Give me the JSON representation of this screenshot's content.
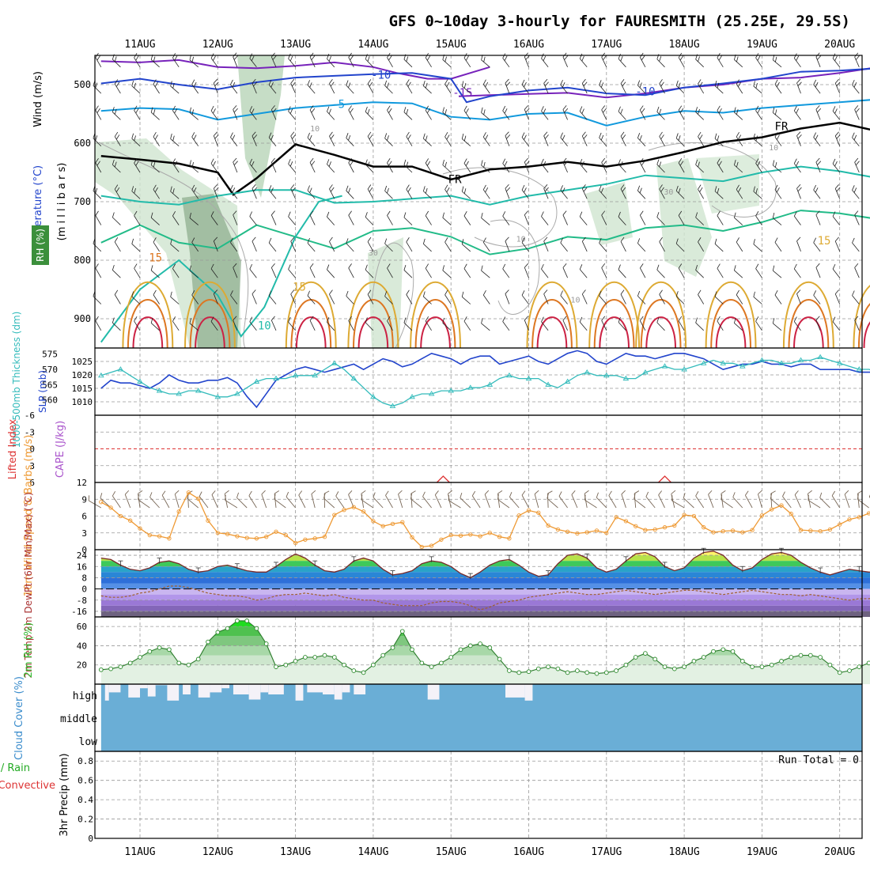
{
  "chart_data": {
    "type": "line",
    "title": "GFS 0~10day 3-hourly for FAURESMITH (25.25E, 29.5S)",
    "x_dates": [
      "11AUG",
      "12AUG",
      "13AUG",
      "14AUG",
      "15AUG",
      "16AUG",
      "17AUG",
      "18AUG",
      "19AUG",
      "20AUG"
    ],
    "colors": {
      "temp_m15": "#7722bb",
      "temp_m10": "#2244cc",
      "temp_m5": "#1199dd",
      "temp_0": "#22bbaa",
      "temp_5": "#22bb88",
      "temp_15": "#ddaa33",
      "temp_20": "#dd7722",
      "temp_25": "#cc2244",
      "slp": "#2244cc",
      "thickness": "#33bbbb",
      "wind_speed": "#ee9933",
      "barb": "#776655",
      "rh_fill": "#33bb33",
      "cloud": "#6aaed6",
      "lifted_index": "#dd3333"
    },
    "panels": {
      "upper_air": {
        "ylabel_wind": "Wind (m/s)",
        "ylabel_temp": "Temperature (°C)",
        "ylabel_rh": "RH (%)",
        "ylabel_p": "(m i l l i b a r s)",
        "yticks": [
          500,
          600,
          700,
          800,
          900
        ],
        "ylim": [
          450,
          950
        ],
        "contour_labels": [
          {
            "text": "-15",
            "x": 4.15,
            "p": 520,
            "color": "#7722bb"
          },
          {
            "text": "-10",
            "x": 3.1,
            "p": 490,
            "color": "#2244cc"
          },
          {
            "text": "-10",
            "x": 6.5,
            "p": 518,
            "color": "#2244cc"
          },
          {
            "text": "-5",
            "x": 2.55,
            "p": 540,
            "color": "#1199dd"
          },
          {
            "text": "FR",
            "x": 8.25,
            "p": 578,
            "color": "#000000"
          },
          {
            "text": "FR",
            "x": 4.05,
            "p": 668,
            "color": "#000000"
          },
          {
            "text": "15",
            "x": 0.2,
            "p": 802,
            "color": "#dd7722"
          },
          {
            "text": "15",
            "x": 2.05,
            "p": 852,
            "color": "#ddaa33"
          },
          {
            "text": "15",
            "x": 8.8,
            "p": 773,
            "color": "#ddaa33"
          },
          {
            "text": "10",
            "x": 1.6,
            "p": 918,
            "color": "#22bbaa"
          },
          {
            "text": "10",
            "x": 2.25,
            "p": 580,
            "color": "#999999"
          },
          {
            "text": "10",
            "x": 8.15,
            "p": 612,
            "color": "#999999"
          },
          {
            "text": "10",
            "x": 4.9,
            "p": 768,
            "color": "#999999"
          },
          {
            "text": "10",
            "x": 5.6,
            "p": 872,
            "color": "#999999"
          },
          {
            "text": "30",
            "x": 3.0,
            "p": 792,
            "color": "#999999"
          },
          {
            "text": "30",
            "x": 6.8,
            "p": 688,
            "color": "#999999"
          }
        ]
      },
      "pressure": {
        "ylabel_thick": "1000-500mb Thickness (dm)",
        "ylabel_slp": "SLP (mb)",
        "yticks_thick": [
          560,
          565,
          570,
          575
        ],
        "yticks_slp": [
          1010,
          1015,
          1020,
          1025
        ],
        "slp": [
          1015,
          1018,
          1017,
          1017,
          1016,
          1015,
          1017,
          1020,
          1018,
          1017,
          1017,
          1018,
          1018,
          1019,
          1017,
          1012,
          1008,
          1013,
          1018,
          1020,
          1022,
          1023,
          1022,
          1021,
          1022,
          1023,
          1024,
          1022,
          1024,
          1026,
          1025,
          1023,
          1024,
          1026,
          1028,
          1027,
          1026,
          1024,
          1026,
          1027,
          1027,
          1024,
          1025,
          1026,
          1027,
          1025,
          1024,
          1026,
          1028,
          1029,
          1028,
          1025,
          1024,
          1026,
          1028,
          1027,
          1027,
          1026,
          1027,
          1028,
          1028,
          1027,
          1026,
          1024,
          1022,
          1023,
          1024,
          1024,
          1025,
          1024,
          1024,
          1023,
          1024,
          1024,
          1022,
          1022,
          1022,
          1022,
          1021,
          1021,
          1021
        ],
        "thickness": [
          568,
          569,
          570,
          568,
          566,
          564,
          563,
          562,
          562,
          563,
          563,
          562,
          561,
          561,
          562,
          564,
          566,
          567,
          567,
          567,
          568,
          568,
          568,
          570,
          572,
          570,
          567,
          564,
          561,
          559,
          558,
          559,
          561,
          562,
          562,
          563,
          563,
          563,
          564,
          564,
          565,
          567,
          568,
          567,
          567,
          567,
          565,
          564,
          566,
          568,
          569,
          568,
          568,
          568,
          567,
          567,
          569,
          570,
          571,
          570,
          570,
          571,
          572,
          573,
          572,
          572,
          571,
          572,
          573,
          573,
          572,
          572,
          573,
          573,
          574,
          573,
          572,
          571,
          570,
          570,
          569
        ]
      },
      "cape": {
        "ylabel_li": "Lifted Index",
        "ylabel_cape": "CAPE (J/kg)",
        "yticks": [
          -6,
          -3,
          0,
          3,
          6
        ],
        "li_ylim": [
          -6,
          6
        ],
        "cape_spikes_x": [
          3.9,
          6.75
        ]
      },
      "wind10": {
        "ylabel": "10m Wind Speed & Barbs (m/s)",
        "yticks": [
          0,
          3,
          6,
          9,
          12
        ],
        "ylim": [
          0,
          12
        ],
        "speed": [
          8.5,
          7.5,
          6.0,
          5.2,
          3.8,
          2.6,
          2.4,
          2.0,
          6.8,
          10.2,
          9.1,
          5.2,
          3.0,
          2.8,
          2.4,
          2.1,
          2.0,
          2.3,
          3.2,
          2.6,
          1.2,
          1.8,
          2.0,
          2.3,
          6.2,
          7.1,
          7.6,
          6.8,
          5.1,
          4.2,
          4.6,
          4.9,
          2.2,
          0.5,
          0.7,
          1.8,
          2.6,
          2.5,
          2.7,
          2.4,
          3.0,
          2.3,
          2.0,
          6.1,
          7.0,
          6.6,
          4.3,
          3.6,
          3.2,
          2.9,
          3.1,
          3.4,
          3.0,
          5.8,
          5.1,
          4.2,
          3.5,
          3.6,
          4.0,
          4.3,
          6.2,
          6.0,
          4.0,
          3.1,
          3.3,
          3.4,
          3.1,
          3.5,
          6.1,
          7.2,
          7.9,
          6.4,
          3.5,
          3.4,
          3.3,
          3.6,
          4.5,
          5.4,
          5.8,
          6.5,
          6.9
        ]
      },
      "temp2m": {
        "ylabel": "2m Temp 2m DewPt (6hr Min/Max) (°C)",
        "yticks": [
          -16,
          -8,
          0,
          8,
          16,
          24
        ],
        "ylim": [
          -20,
          28
        ],
        "temp": [
          22,
          21,
          17,
          14,
          13,
          15,
          19,
          20,
          18,
          14,
          12,
          13,
          16,
          17,
          15,
          13,
          12,
          12,
          16,
          21,
          25,
          22,
          17,
          13,
          12,
          14,
          20,
          22,
          20,
          14,
          10,
          11,
          13,
          18,
          20,
          19,
          16,
          11,
          8,
          12,
          17,
          20,
          21,
          17,
          12,
          9,
          10,
          18,
          24,
          25,
          22,
          15,
          12,
          14,
          20,
          25,
          26,
          23,
          16,
          13,
          15,
          22,
          26,
          27,
          24,
          17,
          13,
          15,
          21,
          25,
          26,
          24,
          19,
          15,
          12,
          10,
          12,
          14,
          13,
          12,
          13
        ],
        "dew": [
          -5,
          -6,
          -6,
          -5,
          -3,
          -2,
          0,
          2,
          2,
          1,
          -1,
          -3,
          -4,
          -5,
          -5,
          -6,
          -8,
          -7,
          -5,
          -4,
          -4,
          -3,
          -4,
          -5,
          -4,
          -6,
          -7,
          -8,
          -8,
          -10,
          -11,
          -12,
          -12,
          -12,
          -10,
          -9,
          -9,
          -10,
          -12,
          -15,
          -13,
          -10,
          -9,
          -8,
          -6,
          -5,
          -4,
          -3,
          -2,
          -3,
          -4,
          -4,
          -3,
          -2,
          -1,
          -2,
          -3,
          -4,
          -3,
          -2,
          -1,
          -1,
          -2,
          -3,
          -4,
          -3,
          -2,
          -1,
          -2,
          -3,
          -4,
          -4,
          -5,
          -4,
          -5,
          -6,
          -7,
          -8,
          -7,
          -7,
          -6
        ]
      },
      "rh2m": {
        "ylabel": "2m RH (%)",
        "yticks": [
          20,
          40,
          60
        ],
        "ylim": [
          0,
          70
        ],
        "rh": [
          15,
          16,
          18,
          22,
          28,
          34,
          38,
          36,
          22,
          20,
          26,
          44,
          54,
          58,
          66,
          66,
          58,
          42,
          18,
          20,
          24,
          28,
          28,
          30,
          28,
          20,
          14,
          12,
          20,
          30,
          38,
          55,
          36,
          22,
          18,
          22,
          28,
          36,
          40,
          42,
          38,
          26,
          14,
          12,
          13,
          16,
          18,
          16,
          12,
          14,
          12,
          11,
          12,
          14,
          20,
          28,
          32,
          26,
          18,
          16,
          18,
          24,
          28,
          34,
          36,
          34,
          24,
          18,
          18,
          20,
          24,
          28,
          30,
          30,
          28,
          20,
          12,
          14,
          18,
          22,
          26
        ]
      },
      "cloud": {
        "ylabel": "Cloud Cover (%)",
        "levels": [
          "high",
          "middle",
          "low"
        ],
        "gaps": [
          [
            0.0,
            0.05,
            0.2
          ],
          [
            0.05,
            0.2,
            0.6
          ],
          [
            0.3,
            0.45,
            0.35
          ],
          [
            0.45,
            0.55,
            0.8
          ],
          [
            0.55,
            0.65,
            0.4
          ],
          [
            0.65,
            0.8,
            0.95
          ],
          [
            0.8,
            0.95,
            0.2
          ],
          [
            1.0,
            1.1,
            0.5
          ],
          [
            1.2,
            1.35,
            0.35
          ],
          [
            1.35,
            1.5,
            0.6
          ],
          [
            1.5,
            1.6,
            0.8
          ],
          [
            1.65,
            1.85,
            0.5
          ],
          [
            1.85,
            2.0,
            0.25
          ],
          [
            2.0,
            2.1,
            0.6
          ],
          [
            2.1,
            2.3,
            0.5
          ],
          [
            2.45,
            2.55,
            0.2
          ],
          [
            2.6,
            2.8,
            0.6
          ],
          [
            2.8,
            2.95,
            0.5
          ],
          [
            2.95,
            3.05,
            0.25
          ],
          [
            3.05,
            3.15,
            0.6
          ],
          [
            3.2,
            3.35,
            0.5
          ],
          [
            4.15,
            4.3,
            0.25
          ],
          [
            5.15,
            5.4,
            0.35
          ],
          [
            5.4,
            5.5,
            0.2
          ]
        ]
      },
      "precip": {
        "ylabel": "3hr Precip (mm)",
        "ylabel_total": "Total / Rain",
        "ylabel_conv": "Convective",
        "run_total": "Run Total = 0",
        "yticks": [
          0,
          0.2,
          0.4,
          0.6,
          0.8
        ],
        "ylim": [
          0,
          0.9
        ]
      }
    }
  }
}
